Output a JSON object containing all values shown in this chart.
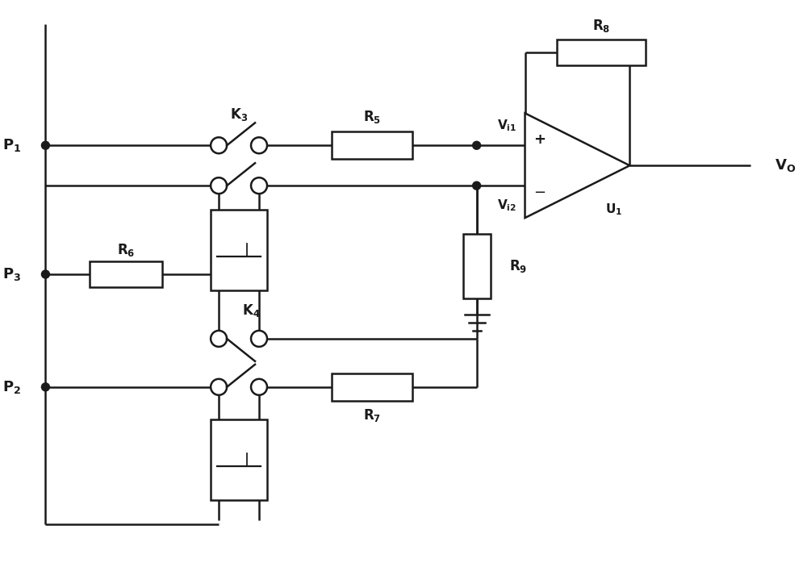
{
  "bg_color": "#ffffff",
  "line_color": "#1a1a1a",
  "line_width": 1.8,
  "fig_width": 10.0,
  "fig_height": 6.98,
  "dpi": 100
}
